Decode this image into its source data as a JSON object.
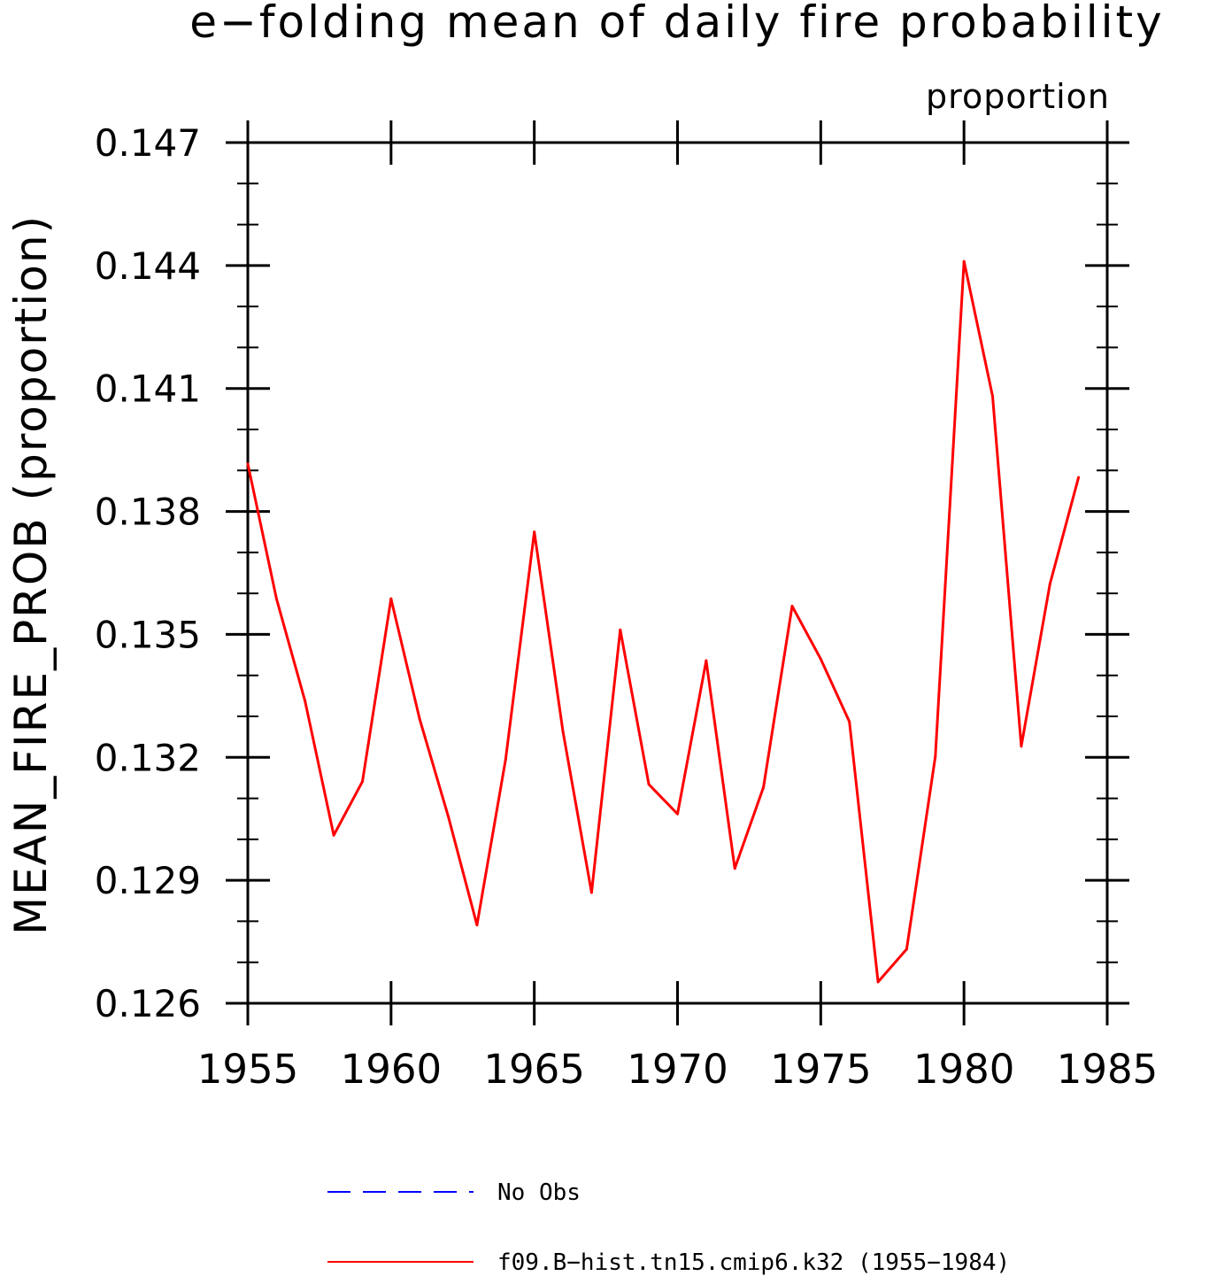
{
  "chart_data": {
    "type": "line",
    "title": "e−folding mean of daily fire probability",
    "subtitle": "proportion",
    "xlabel": "",
    "ylabel": "MEAN_FIRE_PROB   (proportion)",
    "xlim": [
      1955,
      1985
    ],
    "ylim": [
      0.126,
      0.147
    ],
    "x_ticks": [
      1955,
      1960,
      1965,
      1970,
      1975,
      1980,
      1985
    ],
    "x_tick_labels": [
      "1955",
      "1960",
      "1965",
      "1970",
      "1975",
      "1980",
      "1985"
    ],
    "y_ticks": [
      0.126,
      0.129,
      0.132,
      0.135,
      0.138,
      0.141,
      0.144,
      0.147
    ],
    "y_tick_labels": [
      "0.126",
      "0.129",
      "0.132",
      "0.135",
      "0.138",
      "0.141",
      "0.144",
      "0.147"
    ],
    "grid": false,
    "legend_placement": "bottom",
    "series": [
      {
        "name": "f09.B−hist.tn15.cmip6.k32 (1955−1984)",
        "color": "#ff0000",
        "style": "solid",
        "x": [
          1955,
          1956,
          1957,
          1958,
          1959,
          1960,
          1961,
          1962,
          1963,
          1964,
          1965,
          1966,
          1967,
          1968,
          1969,
          1970,
          1971,
          1972,
          1973,
          1974,
          1975,
          1976,
          1977,
          1978,
          1979,
          1980,
          1981,
          1982,
          1983,
          1984
        ],
        "values": [
          0.13916,
          0.13587,
          0.13337,
          0.1301,
          0.13141,
          0.13587,
          0.13293,
          0.13055,
          0.12791,
          0.13195,
          0.1375,
          0.13264,
          0.1287,
          0.13511,
          0.13134,
          0.13062,
          0.13436,
          0.12929,
          0.13127,
          0.13569,
          0.1344,
          0.13287,
          0.12652,
          0.12732,
          0.13202,
          0.1441,
          0.14081,
          0.13227,
          0.13623,
          0.13883
        ]
      },
      {
        "name": "No Obs",
        "color": "#0000ff",
        "style": "dashed",
        "x": [],
        "values": []
      }
    ]
  }
}
